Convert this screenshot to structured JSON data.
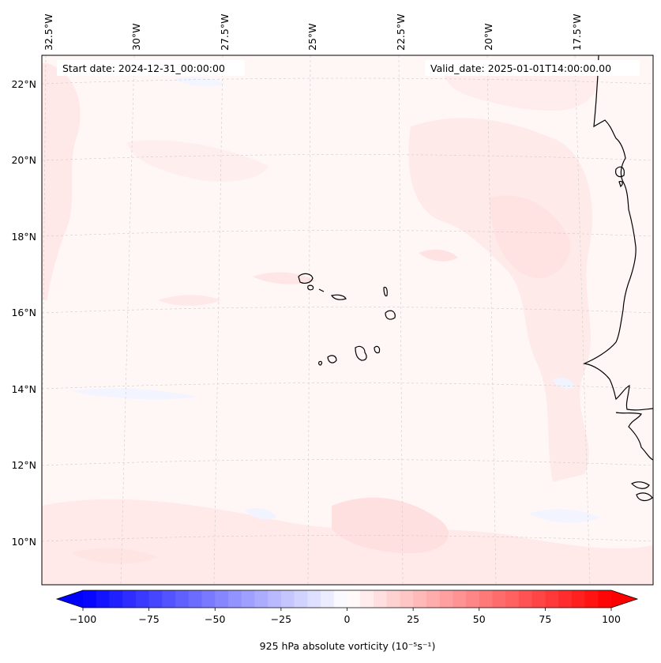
{
  "map": {
    "header_left": "Start date: 2024-12-31_00:00:00",
    "header_right": "Valid_date: 2025-01-01T14:00:00.00",
    "lat_labels": [
      "22°N",
      "20°N",
      "18°N",
      "16°N",
      "14°N",
      "12°N",
      "10°N"
    ],
    "lon_labels": [
      "32.5°W",
      "30°W",
      "27.5°W",
      "25°W",
      "22.5°W",
      "20°W",
      "17.5°W"
    ],
    "gridlines": true,
    "coastline_color": "#000000",
    "field_background": "#fff6f6"
  },
  "colorbar": {
    "cmap": "bwr",
    "ticks": [
      "−100",
      "−75",
      "−50",
      "−25",
      "0",
      "25",
      "50",
      "75",
      "100"
    ],
    "range": [
      -100,
      100
    ],
    "label": "925 hPa absolute vorticity (10⁻⁵s⁻¹)",
    "extend": "both"
  }
}
